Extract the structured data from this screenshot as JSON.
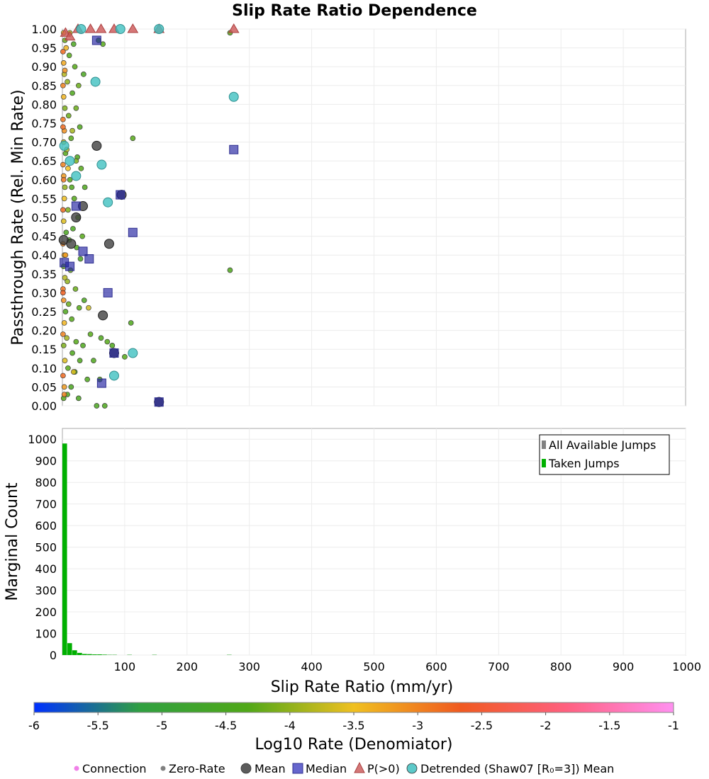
{
  "chart_data": [
    {
      "type": "scatter",
      "title": "Slip Rate Ratio Dependence",
      "ylabel": "Passthrough Rate (Rel. Min Rate)",
      "xlim": [
        0,
        1000
      ],
      "ylim": [
        0,
        1.0
      ],
      "y_ticks": [
        "0.00",
        "0.05",
        "0.10",
        "0.15",
        "0.20",
        "0.25",
        "0.30",
        "0.35",
        "0.40",
        "0.45",
        "0.50",
        "0.55",
        "0.60",
        "0.65",
        "0.70",
        "0.75",
        "0.80",
        "0.85",
        "0.90",
        "0.95",
        "1.00"
      ],
      "grid": true,
      "series": [
        {
          "name": "Connection",
          "color": "#f080e8",
          "points": [
            [
              2,
              0.02,
              -4.3
            ],
            [
              3,
              0.05,
              -3.2
            ],
            [
              1,
              0.08,
              -2.8
            ],
            [
              4,
              0.12,
              -3.6
            ],
            [
              2,
              0.16,
              -4.1
            ],
            [
              1,
              0.19,
              -3.0
            ],
            [
              3,
              0.22,
              -3.4
            ],
            [
              5,
              0.25,
              -4.4
            ],
            [
              2,
              0.28,
              -3.1
            ],
            [
              1,
              0.31,
              -2.9
            ],
            [
              4,
              0.34,
              -3.8
            ],
            [
              2,
              0.37,
              -4.2
            ],
            [
              3,
              0.4,
              -3.3
            ],
            [
              1,
              0.43,
              -3.0
            ],
            [
              6,
              0.46,
              -4.5
            ],
            [
              2,
              0.49,
              -3.6
            ],
            [
              1,
              0.52,
              -2.8
            ],
            [
              3,
              0.55,
              -3.5
            ],
            [
              4,
              0.58,
              -4.0
            ],
            [
              2,
              0.61,
              -3.2
            ],
            [
              1,
              0.64,
              -3.0
            ],
            [
              5,
              0.67,
              -4.3
            ],
            [
              2,
              0.7,
              -3.7
            ],
            [
              3,
              0.73,
              -3.1
            ],
            [
              1,
              0.76,
              -2.9
            ],
            [
              4,
              0.79,
              -4.1
            ],
            [
              2,
              0.82,
              -3.4
            ],
            [
              1,
              0.85,
              -3.0
            ],
            [
              3,
              0.88,
              -3.8
            ],
            [
              2,
              0.91,
              -3.3
            ],
            [
              1,
              0.94,
              -2.8
            ],
            [
              4,
              0.97,
              -4.2
            ],
            [
              2,
              0.99,
              -3.5
            ],
            [
              8,
              0.03,
              -4.4
            ],
            [
              9,
              0.1,
              -4.3
            ],
            [
              7,
              0.18,
              -3.9
            ],
            [
              10,
              0.27,
              -4.2
            ],
            [
              8,
              0.33,
              -4.0
            ],
            [
              11,
              0.44,
              -4.4
            ],
            [
              9,
              0.52,
              -4.1
            ],
            [
              12,
              0.6,
              -4.3
            ],
            [
              7,
              0.68,
              -3.8
            ],
            [
              10,
              0.77,
              -4.2
            ],
            [
              8,
              0.86,
              -4.0
            ],
            [
              11,
              0.93,
              -4.3
            ],
            [
              14,
              0.05,
              -4.5
            ],
            [
              16,
              0.14,
              -4.4
            ],
            [
              15,
              0.23,
              -4.3
            ],
            [
              13,
              0.36,
              -4.2
            ],
            [
              17,
              0.47,
              -4.5
            ],
            [
              15,
              0.58,
              -4.4
            ],
            [
              14,
              0.71,
              -4.3
            ],
            [
              16,
              0.83,
              -4.4
            ],
            [
              18,
              0.96,
              -4.5
            ],
            [
              20,
              0.09,
              -4.4
            ],
            [
              22,
              0.17,
              -4.3
            ],
            [
              21,
              0.31,
              -4.2
            ],
            [
              23,
              0.42,
              -4.4
            ],
            [
              19,
              0.55,
              -4.3
            ],
            [
              24,
              0.66,
              -4.4
            ],
            [
              22,
              0.79,
              -4.2
            ],
            [
              20,
              0.9,
              -4.3
            ],
            [
              26,
              0.02,
              -4.5
            ],
            [
              28,
              0.12,
              -4.4
            ],
            [
              27,
              0.26,
              -4.3
            ],
            [
              29,
              0.39,
              -4.5
            ],
            [
              25,
              0.5,
              -4.4
            ],
            [
              30,
              0.63,
              -4.3
            ],
            [
              28,
              0.74,
              -4.4
            ],
            [
              26,
              0.85,
              -4.2
            ],
            [
              33,
              0.16,
              -4.4
            ],
            [
              35,
              0.28,
              -4.5
            ],
            [
              32,
              0.45,
              -4.3
            ],
            [
              36,
              0.58,
              -4.4
            ],
            [
              34,
              0.88,
              -4.5
            ],
            [
              40,
              0.07,
              -4.4
            ],
            [
              42,
              0.26,
              -3.7
            ],
            [
              45,
              0.19,
              -4.3
            ],
            [
              50,
              0.12,
              -4.4
            ],
            [
              55,
              0.0,
              -4.5
            ],
            [
              58,
              0.97,
              -4.4
            ],
            [
              60,
              0.07,
              -4.3
            ],
            [
              62,
              0.18,
              -4.4
            ],
            [
              65,
              0.96,
              -4.3
            ],
            [
              68,
              0.0,
              -4.4
            ],
            [
              72,
              0.17,
              -4.3
            ],
            [
              80,
              0.16,
              -4.4
            ],
            [
              100,
              0.13,
              -4.3
            ],
            [
              110,
              0.22,
              -4.4
            ],
            [
              113,
              0.71,
              -4.3
            ],
            [
              269,
              0.36,
              -4.4
            ],
            [
              269,
              0.99,
              -4.3
            ],
            [
              16,
              0.73,
              -3.9
            ],
            [
              22,
              0.65,
              -4.1
            ],
            [
              18,
              0.09,
              -3.6
            ],
            [
              12,
              0.99,
              -3.8
            ],
            [
              6,
              0.95,
              -3.4
            ],
            [
              9,
              0.63,
              -3.5
            ],
            [
              3,
              0.03,
              -3.0
            ],
            [
              4,
              0.89,
              -3.1
            ],
            [
              5,
              0.4,
              -3.2
            ],
            [
              2,
              0.6,
              -2.9
            ],
            [
              1,
              0.3,
              -2.7
            ],
            [
              1,
              0.74,
              -2.8
            ]
          ]
        },
        {
          "name": "Zero-Rate",
          "color": "#808080",
          "points": []
        },
        {
          "name": "Mean",
          "color": "#404040",
          "points": [
            [
              2,
              0.44
            ],
            [
              14,
              0.43
            ],
            [
              22,
              0.5
            ],
            [
              33,
              0.53
            ],
            [
              55,
              0.69
            ],
            [
              65,
              0.24
            ],
            [
              75,
              0.43
            ],
            [
              83,
              0.14
            ],
            [
              95,
              0.56
            ],
            [
              155,
              0.01
            ]
          ]
        },
        {
          "name": "Median",
          "color": "#4040c0",
          "points": [
            [
              3,
              0.38
            ],
            [
              12,
              0.37
            ],
            [
              22,
              0.53
            ],
            [
              33,
              0.41
            ],
            [
              43,
              0.39
            ],
            [
              55,
              0.97
            ],
            [
              63,
              0.06
            ],
            [
              73,
              0.3
            ],
            [
              83,
              0.14
            ],
            [
              93,
              0.56
            ],
            [
              113,
              0.46
            ],
            [
              155,
              0.01
            ],
            [
              275,
              0.68
            ]
          ]
        },
        {
          "name": "P(>0)",
          "color": "#cc6060",
          "points": [
            [
              5,
              0.99
            ],
            [
              12,
              0.98
            ],
            [
              25,
              1.0
            ],
            [
              45,
              1.0
            ],
            [
              62,
              1.0
            ],
            [
              83,
              1.0
            ],
            [
              113,
              1.0
            ],
            [
              155,
              1.0
            ],
            [
              275,
              1.0
            ]
          ]
        },
        {
          "name": "Detrended (Shaw07 [R₀=3]) Mean",
          "color": "#40c0c0",
          "points": [
            [
              3,
              0.69
            ],
            [
              12,
              0.65
            ],
            [
              22,
              0.61
            ],
            [
              53,
              0.86
            ],
            [
              63,
              0.64
            ],
            [
              73,
              0.54
            ],
            [
              83,
              0.08
            ],
            [
              113,
              0.14
            ],
            [
              275,
              0.82
            ],
            [
              30,
              1.0
            ],
            [
              93,
              1.0
            ],
            [
              155,
              1.0
            ]
          ]
        }
      ]
    },
    {
      "type": "bar",
      "ylabel": "Marginal Count",
      "xlabel": "Slip Rate Ratio (mm/yr)",
      "xlim": [
        0,
        1000
      ],
      "ylim": [
        0,
        1050
      ],
      "x_ticks": [
        "100",
        "200",
        "300",
        "400",
        "500",
        "600",
        "700",
        "800",
        "900",
        "1000"
      ],
      "y_ticks": [
        "0",
        "100",
        "200",
        "300",
        "400",
        "500",
        "600",
        "700",
        "800",
        "900",
        "1000"
      ],
      "legend_position": "top-right",
      "bin_width": 8,
      "series": [
        {
          "name": "All Available Jumps",
          "color": "#808080",
          "bins": [
            [
              0,
              980
            ],
            [
              8,
              55
            ],
            [
              16,
              22
            ],
            [
              24,
              10
            ],
            [
              32,
              5
            ],
            [
              40,
              4
            ],
            [
              48,
              3
            ],
            [
              56,
              3
            ],
            [
              64,
              2
            ],
            [
              72,
              1
            ],
            [
              80,
              1
            ],
            [
              104,
              1
            ],
            [
              144,
              1
            ],
            [
              264,
              1
            ]
          ]
        },
        {
          "name": "Taken Jumps",
          "color": "#00b000",
          "bins": [
            [
              0,
              980
            ],
            [
              8,
              55
            ],
            [
              16,
              22
            ],
            [
              24,
              10
            ],
            [
              32,
              5
            ],
            [
              40,
              4
            ],
            [
              48,
              3
            ],
            [
              56,
              3
            ],
            [
              64,
              2
            ],
            [
              72,
              1
            ],
            [
              80,
              1
            ],
            [
              104,
              1
            ],
            [
              144,
              1
            ],
            [
              264,
              1
            ]
          ]
        }
      ]
    },
    {
      "type": "colorbar",
      "label": "Log10 Rate (Denomiator)",
      "range": [
        -6,
        -1
      ],
      "ticks": [
        "-6",
        "-5.5",
        "-5",
        "-4.5",
        "-4",
        "-3.5",
        "-3",
        "-2.5",
        "-2",
        "-1.5",
        "-1"
      ],
      "stops": [
        "#0030ff",
        "#30a040",
        "#50a818",
        "#f0c020",
        "#f05a20",
        "#ff6080",
        "#ff90f0"
      ]
    }
  ],
  "bottom_legend": [
    {
      "label": "Connection",
      "color": "#f080e8",
      "marker": "dot"
    },
    {
      "label": "Zero-Rate",
      "color": "#808080",
      "marker": "dot"
    },
    {
      "label": "Mean",
      "color": "#404040",
      "marker": "circle"
    },
    {
      "label": "Median",
      "color": "#4040c0",
      "marker": "square"
    },
    {
      "label": "P(>0)",
      "color": "#cc6060",
      "marker": "triangle"
    },
    {
      "label": "Detrended (Shaw07 [R₀=3]) Mean",
      "color": "#40c0c0",
      "marker": "circle"
    }
  ]
}
